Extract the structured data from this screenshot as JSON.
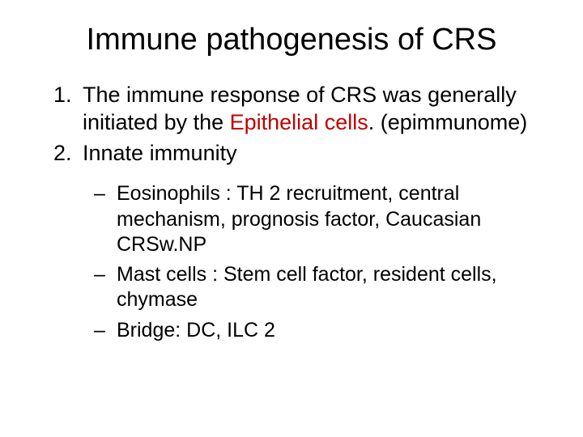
{
  "title": "Immune pathogenesis of CRS",
  "title_fontsize": 38,
  "body_fontsize": 27,
  "sub_fontsize": 25,
  "text_color": "#000000",
  "highlight_color": "#c00000",
  "background_color": "#ffffff",
  "list": {
    "item1_pre": "The immune response of CRS was generally initiated by the ",
    "item1_highlight": "Epithelial cells",
    "item1_post": ". (epimmunome)",
    "item2": "Innate immunity"
  },
  "sublist": {
    "s1": "Eosinophils : TH 2 recruitment, central mechanism, prognosis factor, Caucasian CRSw.NP",
    "s2": "Mast cells : Stem cell factor, resident cells, chymase",
    "s3": "Bridge: DC, ILC 2"
  }
}
